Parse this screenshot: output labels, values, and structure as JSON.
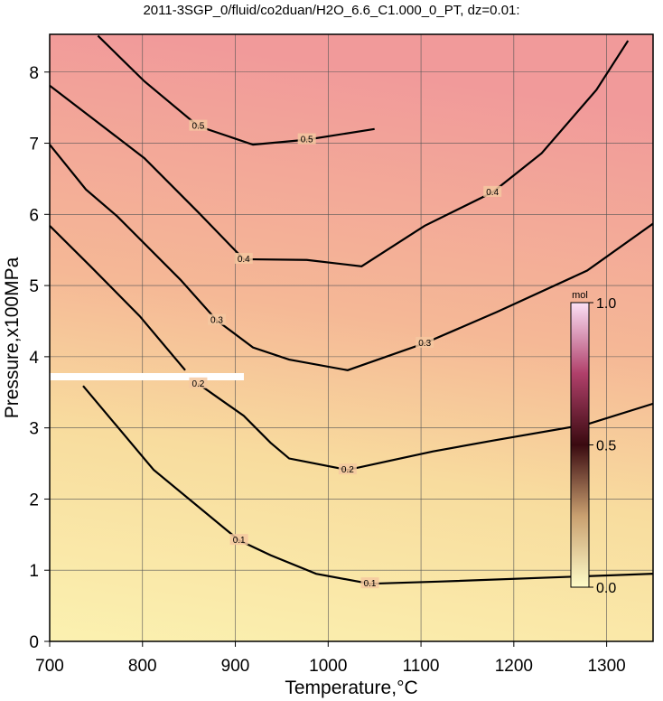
{
  "chart_data": {
    "type": "contour",
    "title": "2011-3SGP_0/fluid/co2duan/H2O_6.6_C1.000_0_PT, dz=0.01:",
    "x_label": "Temperature,°C",
    "y_label": "Pressure,x100MPa",
    "xlim": [
      700,
      1350
    ],
    "ylim": [
      0,
      8.53
    ],
    "xticks": [
      700,
      800,
      900,
      1000,
      1100,
      1200,
      1300
    ],
    "yticks": [
      0,
      1,
      2,
      3,
      4,
      5,
      6,
      7,
      8
    ],
    "grid": true,
    "series": [
      {
        "name": "0.1",
        "color": "#000000",
        "x": [
          736,
          812,
          904,
          938,
          987,
          1045,
          1119,
          1350
        ],
        "y": [
          3.59,
          2.41,
          1.42,
          1.21,
          0.95,
          0.81,
          0.84,
          0.95
        ]
      },
      {
        "name": "0.2",
        "color": "#000000",
        "x": [
          700,
          744,
          797,
          846,
          null,
          860,
          909,
          938,
          958,
          1021,
          1113,
          1177,
          1279,
          1350
        ],
        "y": [
          5.84,
          5.27,
          4.57,
          3.81,
          null,
          3.62,
          3.17,
          2.79,
          2.57,
          2.41,
          2.67,
          2.82,
          3.05,
          3.34
        ]
      },
      {
        "name": "0.3",
        "color": "#000000",
        "x": [
          700,
          739,
          773,
          841,
          880,
          919,
          958,
          1021,
          1104,
          1182,
          1279,
          1350
        ],
        "y": [
          6.98,
          6.35,
          5.97,
          5.08,
          4.51,
          4.13,
          3.96,
          3.81,
          4.19,
          4.63,
          5.21,
          5.87
        ]
      },
      {
        "name": "0.4",
        "color": "#000000",
        "x": [
          700,
          744,
          802,
          860,
          909,
          977,
          1036,
          1104,
          1177,
          1230,
          1289,
          1323
        ],
        "y": [
          7.81,
          7.37,
          6.79,
          6.03,
          5.37,
          5.36,
          5.27,
          5.84,
          6.31,
          6.86,
          7.75,
          8.44
        ]
      },
      {
        "name": "0.5",
        "color": "#000000",
        "x": [
          752,
          802,
          860,
          919,
          977,
          1050
        ],
        "y": [
          8.51,
          7.87,
          7.24,
          6.98,
          7.05,
          7.2
        ]
      }
    ],
    "colorbar": {
      "label": "mol",
      "lim": [
        0,
        1
      ],
      "ticks": [
        {
          "value": 0,
          "label": "0.0"
        },
        0.5,
        {
          "value": 1,
          "label": "1.0"
        }
      ]
    }
  }
}
